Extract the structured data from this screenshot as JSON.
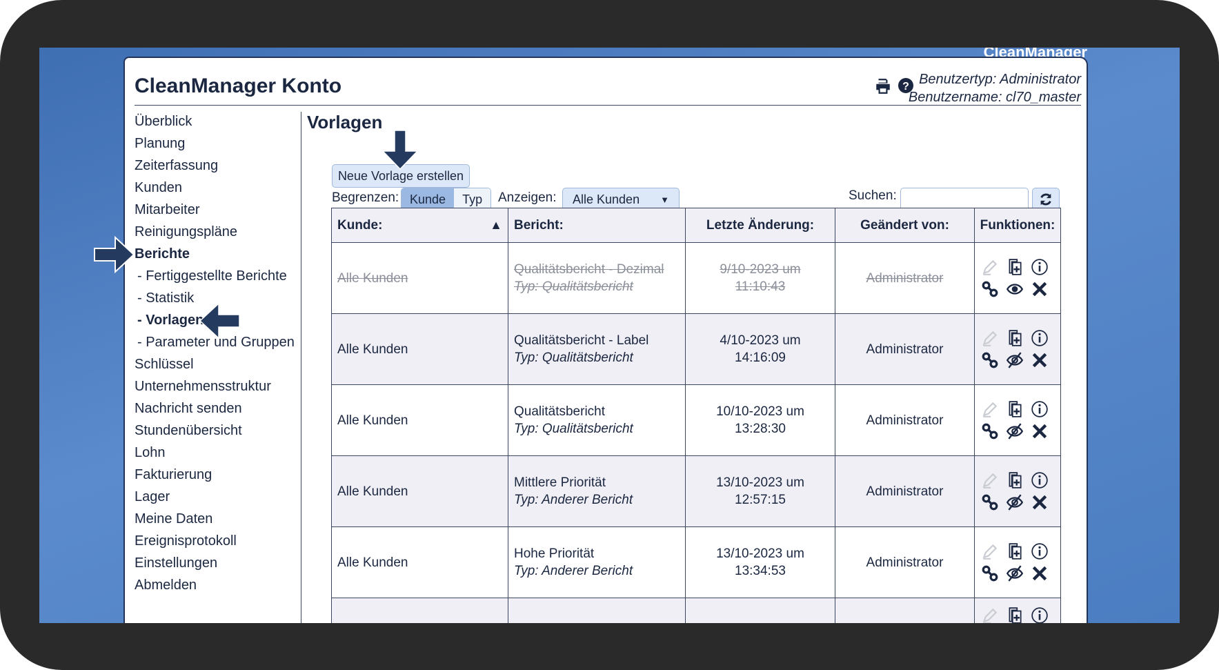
{
  "brand": "CleanManager",
  "header": {
    "title": "CleanManager Konto",
    "user_type": "Benutzertyp: Administrator",
    "user_name": "Benutzername: cl70_master",
    "icons": [
      "print-icon",
      "help-icon"
    ]
  },
  "sidebar": {
    "items": [
      {
        "label": "Überblick"
      },
      {
        "label": "Planung"
      },
      {
        "label": "Zeiterfassung"
      },
      {
        "label": "Kunden"
      },
      {
        "label": "Mitarbeiter"
      },
      {
        "label": "Reinigungspläne"
      },
      {
        "label": "Berichte",
        "active": true
      },
      {
        "label": "- Fertiggestellte Berichte",
        "sub": true
      },
      {
        "label": "- Statistik",
        "sub": true
      },
      {
        "label": "- Vorlagen",
        "sub": true,
        "active": true
      },
      {
        "label": "- Parameter und Gruppen",
        "sub": true
      },
      {
        "label": "Schlüssel"
      },
      {
        "label": "Unternehmensstruktur"
      },
      {
        "label": "Nachricht senden"
      },
      {
        "label": "Stundenübersicht"
      },
      {
        "label": "Lohn"
      },
      {
        "label": "Fakturierung"
      },
      {
        "label": "Lager"
      },
      {
        "label": "Meine Daten"
      },
      {
        "label": "Ereignisprotokoll"
      },
      {
        "label": "Einstellungen"
      },
      {
        "label": "Abmelden"
      }
    ]
  },
  "main": {
    "title": "Vorlagen",
    "new_button": "Neue Vorlage erstellen",
    "filter": {
      "limit_label": "Begrenzen:",
      "limit_options": [
        "Kunde",
        "Typ"
      ],
      "limit_selected": "Kunde",
      "show_label": "Anzeigen:",
      "show_value": "Alle Kunden",
      "search_label": "Suchen:",
      "search_value": ""
    },
    "table": {
      "headers": [
        "Kunde:",
        "Bericht:",
        "Letzte Änderung:",
        "Geändert von:",
        "Funktionen:"
      ],
      "sort": "Kunde ascending",
      "rows": [
        {
          "kunde": "Alle Kunden",
          "bericht": "Qualitätsbericht - Dezimal",
          "typ": "Typ: Qualitätsbericht",
          "datum": "9/10-2023 um 11:10:43",
          "von": "Administrator",
          "deleted": true,
          "visible": true
        },
        {
          "kunde": "Alle Kunden",
          "bericht": "Qualitätsbericht - Label",
          "typ": "Typ: Qualitätsbericht",
          "datum": "4/10-2023 um 14:16:09",
          "von": "Administrator",
          "deleted": false,
          "visible": false
        },
        {
          "kunde": "Alle Kunden",
          "bericht": "Qualitätsbericht",
          "typ": "Typ: Qualitätsbericht",
          "datum": "10/10-2023 um 13:28:30",
          "von": "Administrator",
          "deleted": false,
          "visible": false
        },
        {
          "kunde": "Alle Kunden",
          "bericht": "Mittlere Priorität",
          "typ": "Typ: Anderer Bericht",
          "datum": "13/10-2023 um 12:57:15",
          "von": "Administrator",
          "deleted": false,
          "visible": false
        },
        {
          "kunde": "Alle Kunden",
          "bericht": "Hohe Priorität",
          "typ": "Typ: Anderer Bericht",
          "datum": "13/10-2023 um 13:34:53",
          "von": "Administrator",
          "deleted": false,
          "visible": false
        }
      ]
    }
  },
  "colors": {
    "text": "#1b2740",
    "accent_arrow": "#243a5e",
    "desktop": "#4b7dc2",
    "row_alt": "#f0eff5",
    "button": "#dce8f7"
  }
}
